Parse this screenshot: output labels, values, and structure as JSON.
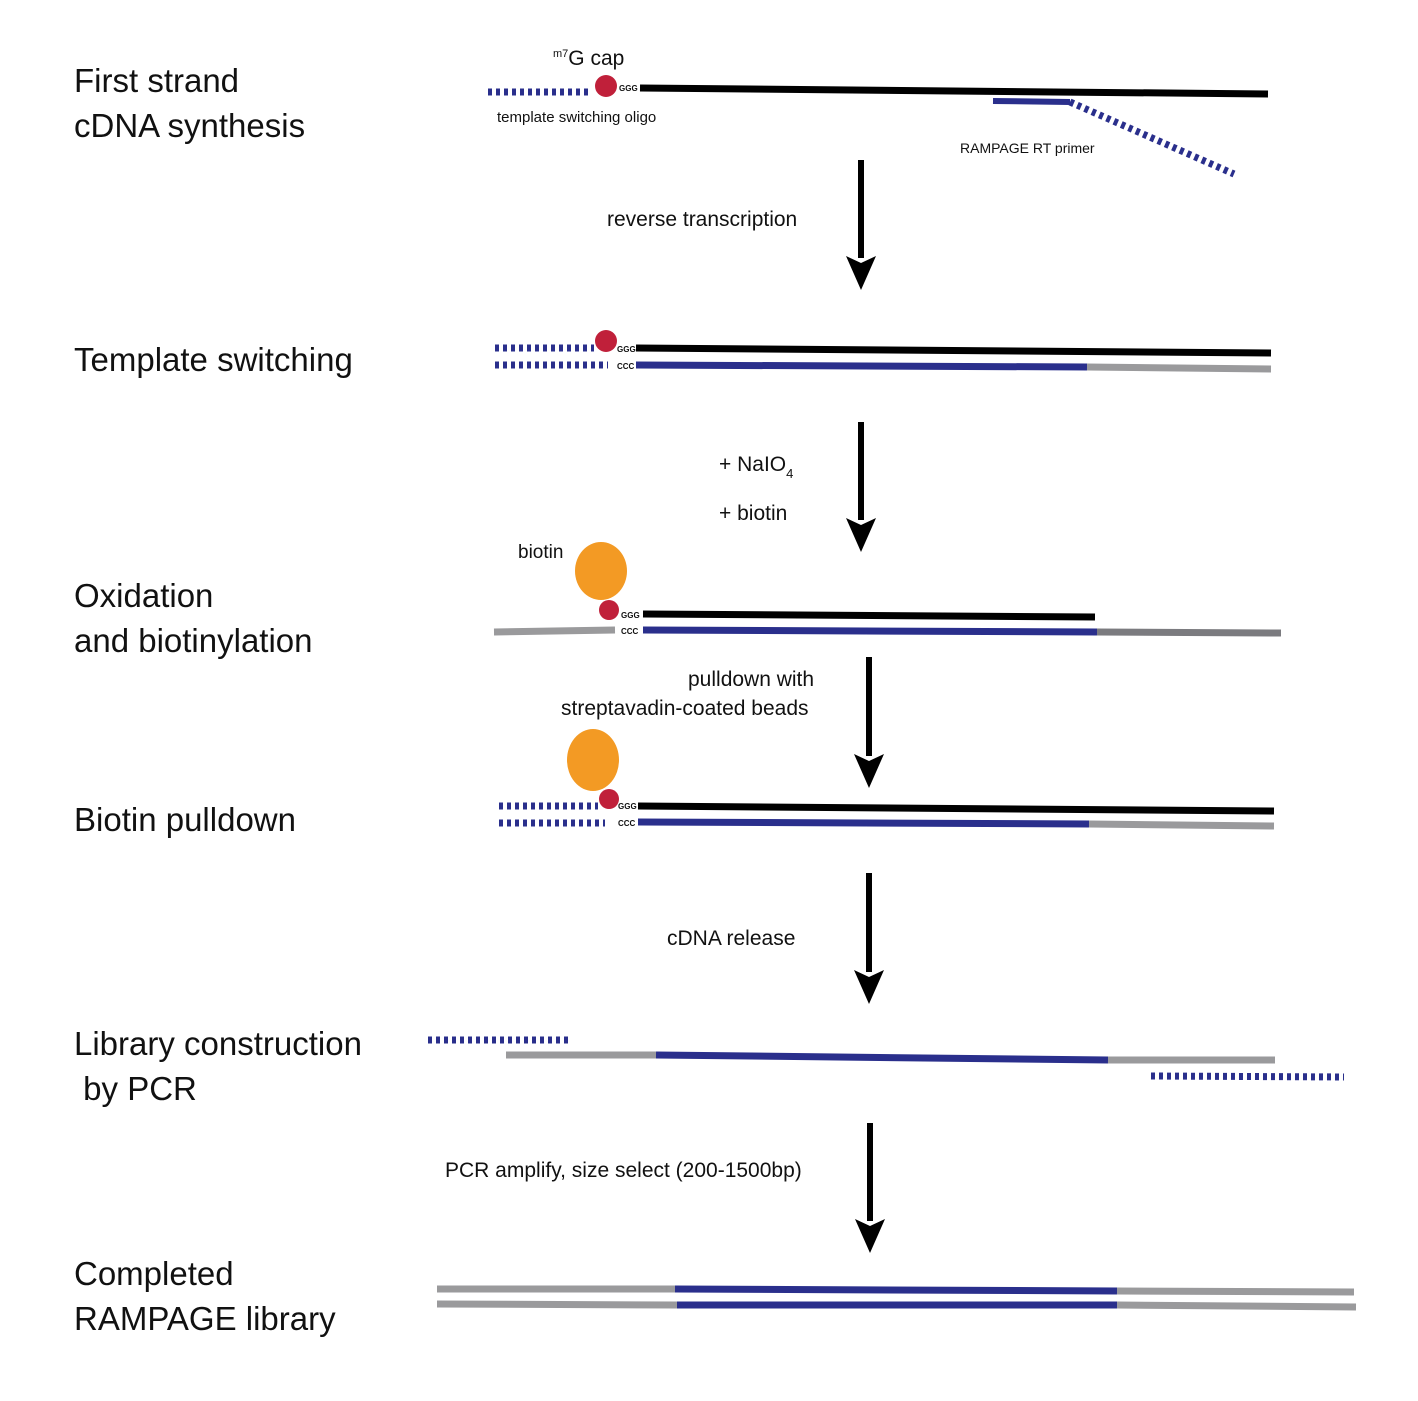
{
  "colors": {
    "black_strand": "#000000",
    "blue_strand": "#2a2f8c",
    "gray_strand": "#9a9a9c",
    "cap": "#c0203a",
    "biotin": "#f39a24",
    "arrow": "#000000"
  },
  "steps": {
    "first_strand": [
      "First strand",
      "cDNA synthesis"
    ],
    "template_switching": [
      "Template switching"
    ],
    "oxidation": [
      "Oxidation",
      "and biotinylation"
    ],
    "pulldown": [
      "Biotin pulldown"
    ],
    "library": [
      "Library construction",
      " by PCR"
    ],
    "completed": [
      "Completed",
      "RAMPAGE library"
    ]
  },
  "transitions": {
    "reverse_transcription": "reverse transcription",
    "naio4_prefix": "+ NaIO",
    "naio4_subscript": "4",
    "plus_biotin": "+ biotin",
    "pulldown_line1": "pulldown with",
    "pulldown_line2": "streptavadin-coated beads",
    "cdna_release": "cDNA release",
    "pcr_amplify": "PCR amplify, size select (200-1500bp)"
  },
  "labels": {
    "cap_superscript": "m7",
    "cap_text": "G cap",
    "template_switching_oligo": "template switching oligo",
    "rampage_rt_primer": "RAMPAGE RT primer",
    "biotin": "biotin",
    "ggg": "GGG",
    "ccc": "CCC"
  }
}
